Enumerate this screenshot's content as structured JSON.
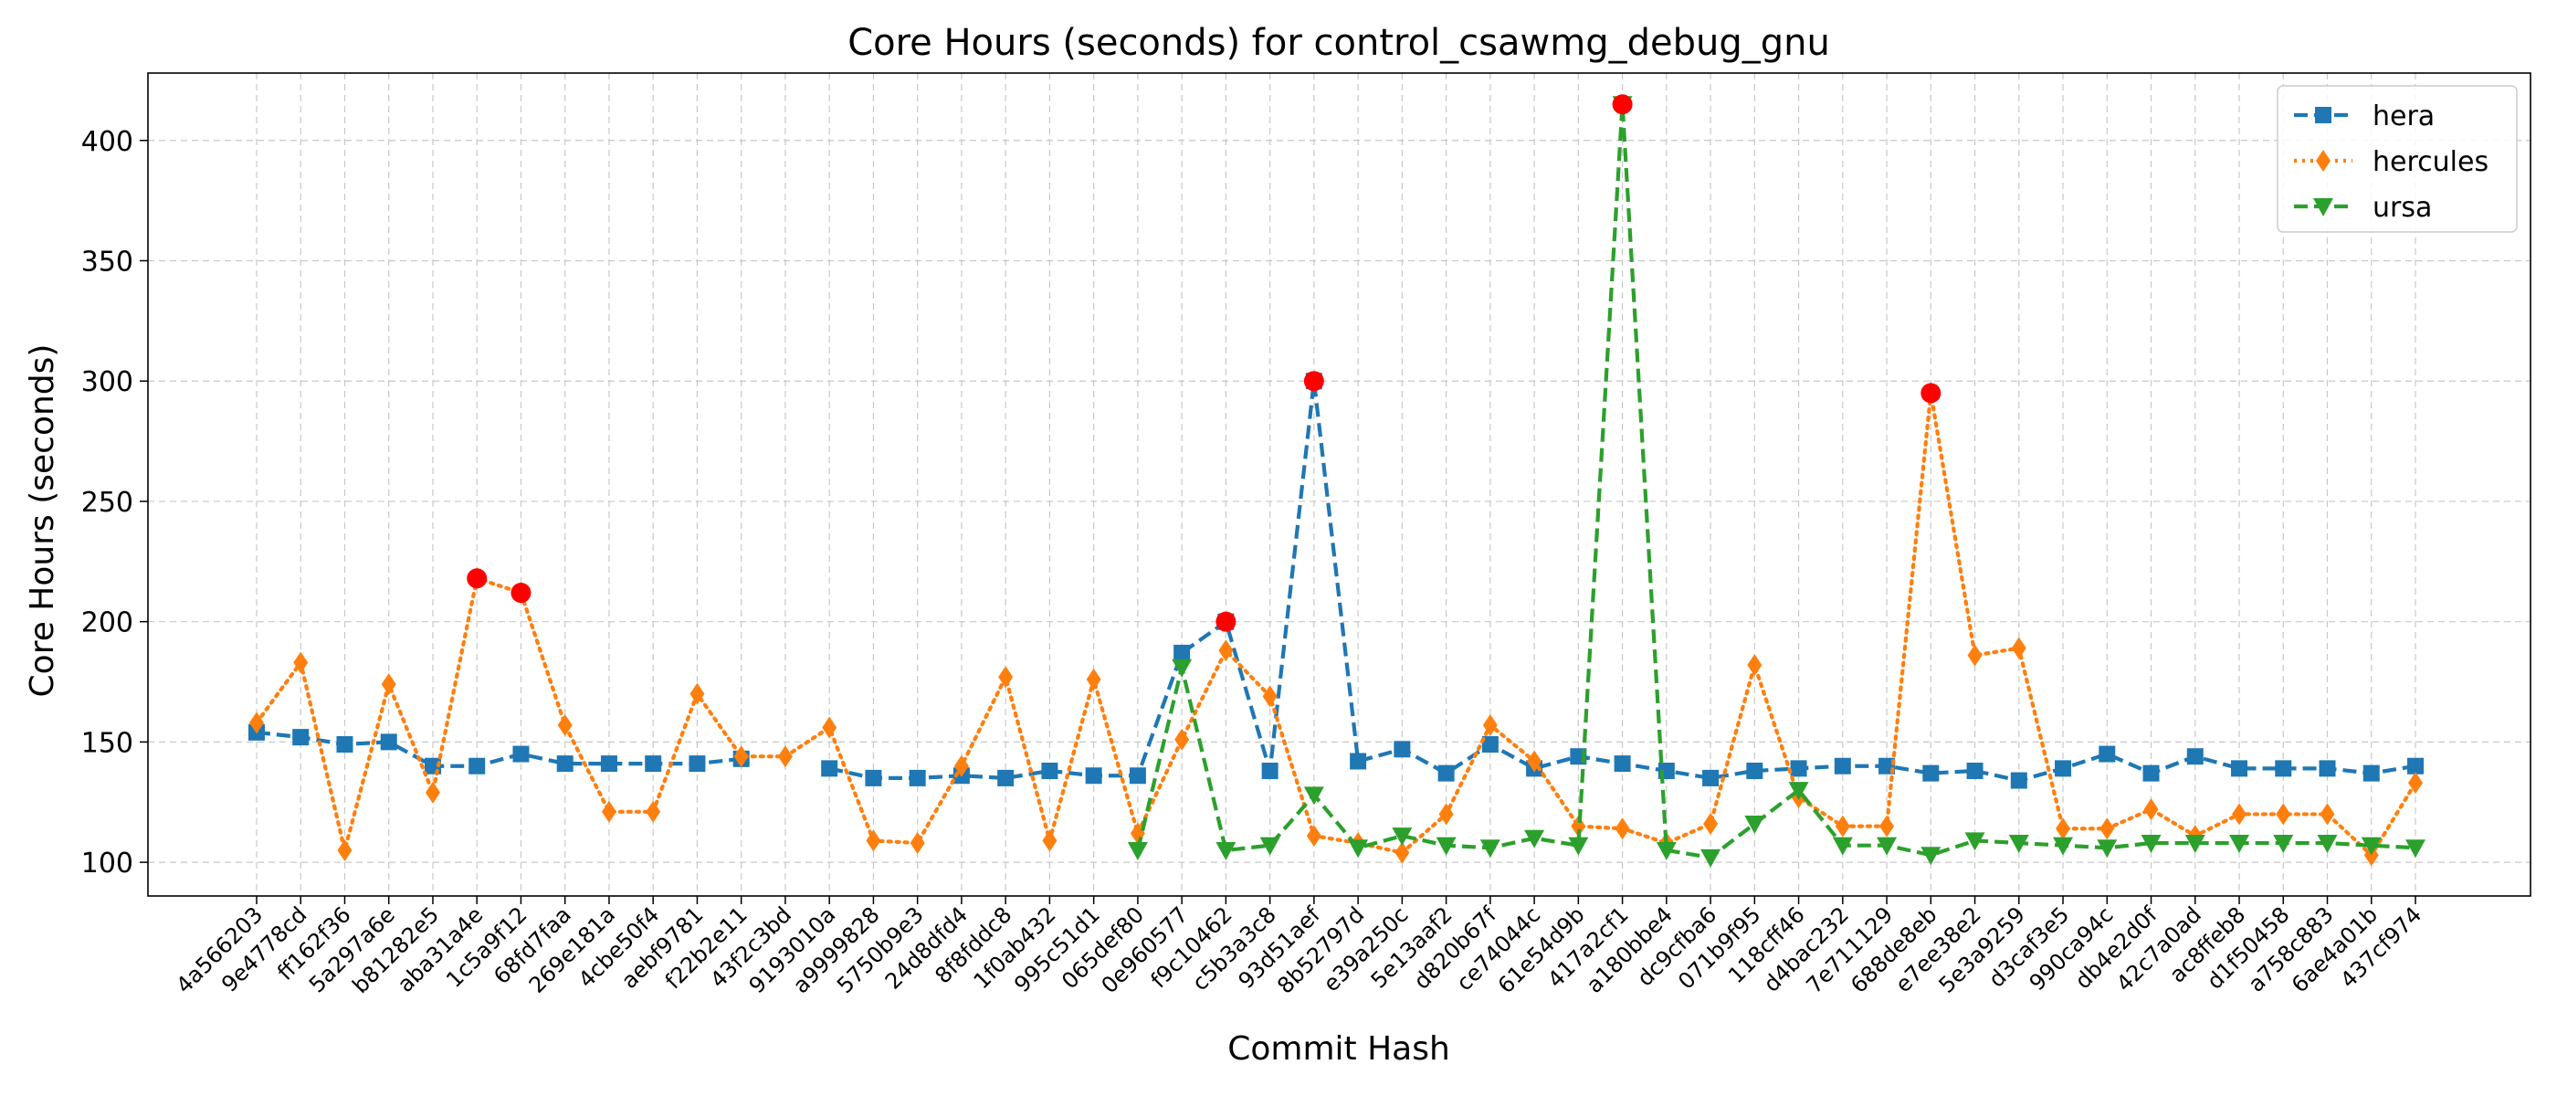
{
  "chart_data": {
    "type": "line",
    "title": "Core Hours (seconds) for control_csawmg_debug_gnu",
    "xlabel": "Commit Hash",
    "ylabel": "Core Hours (seconds)",
    "ylim": [
      86,
      428
    ],
    "yticks": [
      100,
      150,
      200,
      250,
      300,
      350,
      400
    ],
    "grid": true,
    "legend_position": "top-right",
    "categories": [
      "4a566203",
      "9e4778cd",
      "ff162f36",
      "5a297a6e",
      "b81282e5",
      "aba31a4e",
      "1c5a9f12",
      "68fd7faa",
      "269e181a",
      "4cbe50f4",
      "aebf9781",
      "f22b2e11",
      "43f2c3bd",
      "9193010a",
      "a9999828",
      "5750b9e3",
      "24d8dfd4",
      "8f8fddc8",
      "1f0ab432",
      "995c51d1",
      "065def80",
      "0e960577",
      "f9c10462",
      "c5b3a3c8",
      "93d51aef",
      "8b52797d",
      "e39a250c",
      "5e13aaf2",
      "d820b67f",
      "ce74044c",
      "61e54d9b",
      "417a2cf1",
      "a180bbe4",
      "dc9cfba6",
      "071b9f95",
      "118cff46",
      "d4bac232",
      "7e711129",
      "688de8eb",
      "e7ee38e2",
      "5e3a9259",
      "d3caf3e5",
      "990ca94c",
      "db4e2d0f",
      "42c7a0ad",
      "ac8ffeb8",
      "d1f50458",
      "a758c883",
      "6ae4a01b",
      "437cf974"
    ],
    "series": [
      {
        "name": "hera",
        "color": "#1f77b4",
        "linestyle": "dashed",
        "marker": "square",
        "values": [
          154,
          152,
          149,
          150,
          140,
          140,
          145,
          141,
          141,
          141,
          141,
          143,
          null,
          139,
          135,
          135,
          136,
          135,
          138,
          136,
          136,
          187,
          200,
          138,
          300,
          142,
          147,
          137,
          149,
          139,
          144,
          141,
          138,
          135,
          138,
          139,
          140,
          140,
          137,
          138,
          134,
          139,
          145,
          137,
          144,
          139,
          139,
          139,
          137,
          140
        ]
      },
      {
        "name": "hercules",
        "color": "#ff7f0e",
        "linestyle": "dotted",
        "marker": "diamond",
        "values": [
          158,
          183,
          105,
          174,
          129,
          218,
          212,
          157,
          121,
          121,
          170,
          144,
          144,
          156,
          109,
          108,
          140,
          177,
          109,
          176,
          112,
          151,
          188,
          169,
          111,
          108,
          104,
          120,
          157,
          142,
          115,
          114,
          108,
          116,
          182,
          127,
          115,
          115,
          295,
          186,
          189,
          114,
          114,
          122,
          111,
          120,
          120,
          120,
          103,
          133
        ]
      },
      {
        "name": "ursa",
        "color": "#2ca02c",
        "linestyle": "dashed",
        "marker": "triangle-down",
        "values": [
          null,
          null,
          null,
          null,
          null,
          null,
          null,
          null,
          null,
          null,
          null,
          null,
          null,
          null,
          null,
          null,
          null,
          null,
          null,
          null,
          105,
          181,
          105,
          107,
          128,
          106,
          111,
          107,
          106,
          110,
          107,
          415,
          105,
          102,
          116,
          130,
          107,
          107,
          103,
          109,
          108,
          107,
          106,
          108,
          108,
          108,
          108,
          108,
          107,
          106
        ]
      }
    ],
    "highlights": [
      {
        "category": "aba31a4e",
        "value": 218
      },
      {
        "category": "1c5a9f12",
        "value": 212
      },
      {
        "category": "f9c10462",
        "value": 200
      },
      {
        "category": "93d51aef",
        "value": 300
      },
      {
        "category": "417a2cf1",
        "value": 415
      },
      {
        "category": "688de8eb",
        "value": 295
      }
    ],
    "highlight_color": "#ff0000"
  }
}
